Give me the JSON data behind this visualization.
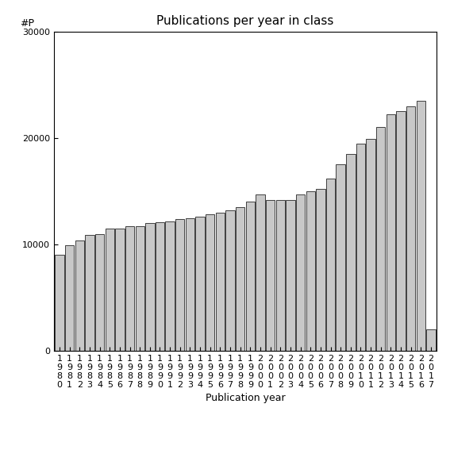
{
  "title": "Publications per year in class",
  "xlabel": "Publication year",
  "ylabel": "#P",
  "years": [
    1980,
    1981,
    1982,
    1983,
    1984,
    1985,
    1986,
    1987,
    1988,
    1989,
    1990,
    1991,
    1992,
    1993,
    1994,
    1995,
    1996,
    1997,
    1998,
    1999,
    2000,
    2001,
    2002,
    2003,
    2004,
    2005,
    2006,
    2007,
    2008,
    2009,
    2010,
    2011,
    2012,
    2013,
    2014,
    2015,
    2016,
    2017
  ],
  "values": [
    9000,
    9900,
    10400,
    10900,
    11000,
    11500,
    11500,
    11700,
    11700,
    12000,
    12100,
    12200,
    12400,
    12500,
    12600,
    12800,
    13000,
    13200,
    13500,
    14000,
    14700,
    14200,
    14200,
    14200,
    14700,
    15000,
    15200,
    16200,
    17500,
    18500,
    19500,
    19900,
    21000,
    22200,
    22500,
    23000,
    23500,
    2000
  ],
  "bar_color": "#C8C8C8",
  "bar_edge_color": "#000000",
  "ylim": [
    0,
    30000
  ],
  "yticks": [
    0,
    10000,
    20000,
    30000
  ],
  "background_color": "#ffffff",
  "title_fontsize": 11,
  "axis_fontsize": 9,
  "tick_fontsize": 8
}
